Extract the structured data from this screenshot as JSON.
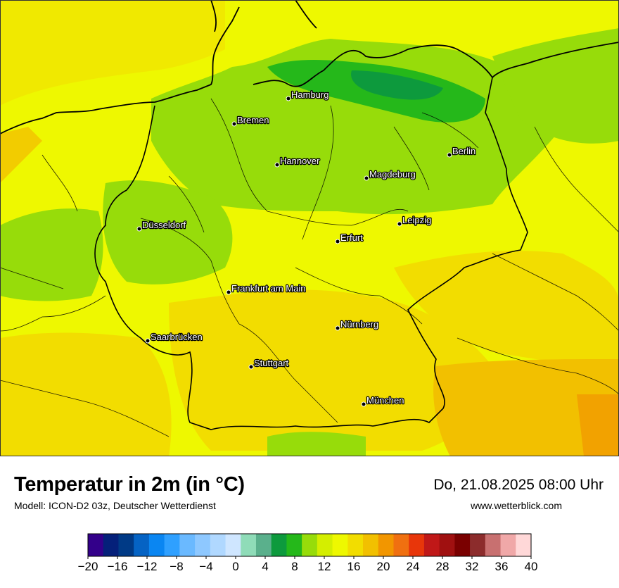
{
  "title": "Temperatur in 2m (in °C)",
  "subtitle": "Modell: ICON-D2 03z, Deutscher Wetterdienst",
  "datetime": "Do, 21.08.2025 08:00 Uhr",
  "source": "www.wetterblick.com",
  "cities": [
    {
      "name": "Hamburg"
    },
    {
      "name": "Bremen"
    },
    {
      "name": "Berlin"
    },
    {
      "name": "Hannover"
    },
    {
      "name": "Magdeburg"
    },
    {
      "name": "Düsseldorf"
    },
    {
      "name": "Leipzig"
    },
    {
      "name": "Erfurt"
    },
    {
      "name": "Frankfurt am Main"
    },
    {
      "name": "Nürnberg"
    },
    {
      "name": "Saarbrücken"
    },
    {
      "name": "Stuttgart"
    },
    {
      "name": "München"
    }
  ],
  "legend": {
    "ticks": [
      "−20",
      "−16",
      "−12",
      "−8",
      "−4",
      "0",
      "4",
      "8",
      "12",
      "16",
      "20",
      "24",
      "28",
      "32",
      "36",
      "40"
    ],
    "colors": [
      "#33008a",
      "#05207a",
      "#003a86",
      "#0563c4",
      "#0a86f2",
      "#2fa0ff",
      "#6ab9ff",
      "#8ec8ff",
      "#b0d8ff",
      "#cfe6ff",
      "#8fdcb8",
      "#5ab08c",
      "#0d9a3d",
      "#25b81a",
      "#97dc0a",
      "#d4ee00",
      "#eef800",
      "#f2dd00",
      "#f2c000",
      "#f29600",
      "#f07010",
      "#e8360a",
      "#c01818",
      "#a01010",
      "#7a0000",
      "#8c2c2c",
      "#c87070",
      "#f0a8a8",
      "#ffd8d8"
    ]
  }
}
